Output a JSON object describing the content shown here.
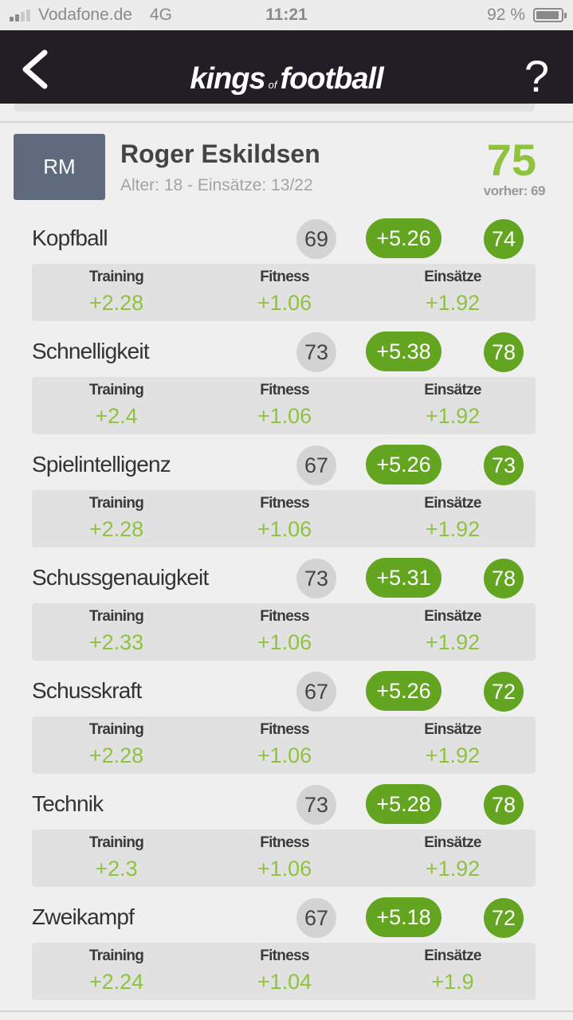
{
  "status_bar": {
    "carrier": "Vodafone.de",
    "network": "4G",
    "time": "11:21",
    "battery": "92 %",
    "battery_level": 0.92
  },
  "header": {
    "logo_main_1": "kings",
    "logo_small": "of",
    "logo_main_2": "football",
    "back_icon": "chevron-left-icon",
    "help_label": "?"
  },
  "player": {
    "position": "RM",
    "name": "Roger Eskildsen",
    "info": "Alter: 18 - Einsätze: 13/22",
    "overall": "75",
    "previous": "vorher: 69"
  },
  "labels": {
    "training": "Training",
    "fitness": "Fitness",
    "einsaetze": "Einsätze"
  },
  "colors": {
    "accent_green": "#63a520",
    "value_green": "#8fc33f",
    "header_bg": "#231d26",
    "badge_bg": "#5f6a7e"
  },
  "attributes": [
    {
      "name": "Kopfball",
      "old": "69",
      "delta": "+5.26",
      "new": "74",
      "training": "+2.28",
      "fitness": "+1.06",
      "einsaetze": "+1.92"
    },
    {
      "name": "Schnelligkeit",
      "old": "73",
      "delta": "+5.38",
      "new": "78",
      "training": "+2.4",
      "fitness": "+1.06",
      "einsaetze": "+1.92"
    },
    {
      "name": "Spielintelligenz",
      "old": "67",
      "delta": "+5.26",
      "new": "73",
      "training": "+2.28",
      "fitness": "+1.06",
      "einsaetze": "+1.92"
    },
    {
      "name": "Schussgenauigkeit",
      "old": "73",
      "delta": "+5.31",
      "new": "78",
      "training": "+2.33",
      "fitness": "+1.06",
      "einsaetze": "+1.92"
    },
    {
      "name": "Schusskraft",
      "old": "67",
      "delta": "+5.26",
      "new": "72",
      "training": "+2.28",
      "fitness": "+1.06",
      "einsaetze": "+1.92"
    },
    {
      "name": "Technik",
      "old": "73",
      "delta": "+5.28",
      "new": "78",
      "training": "+2.3",
      "fitness": "+1.06",
      "einsaetze": "+1.92"
    },
    {
      "name": "Zweikampf",
      "old": "67",
      "delta": "+5.18",
      "new": "72",
      "training": "+2.24",
      "fitness": "+1.04",
      "einsaetze": "+1.9"
    }
  ]
}
